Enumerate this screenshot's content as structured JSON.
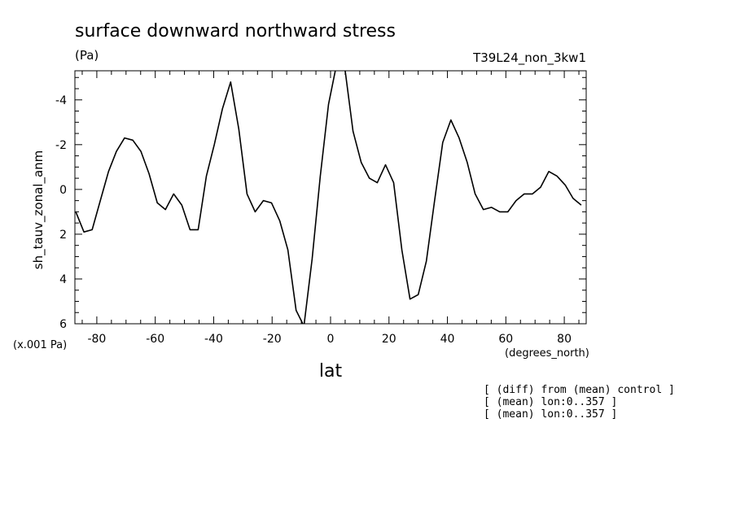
{
  "chart_data": {
    "type": "line",
    "title": "surface downward northward stress",
    "units_label": "(Pa)",
    "run_label": "T39L24_non_3kw1",
    "ylabel": "sh_tauv_zonal_anm",
    "xlabel": "lat",
    "x_units_label": "(degrees_north)",
    "y_scale_label": "(x.001 Pa)",
    "xlim": [
      -87.5,
      87.5
    ],
    "ylim": [
      6,
      -5.3
    ],
    "y_inverted": true,
    "xticks": [
      -80,
      -60,
      -40,
      -20,
      0,
      20,
      40,
      60,
      80
    ],
    "xtick_labels": [
      "-80",
      "-60",
      "-40",
      "-20",
      "0",
      "20",
      "40",
      "60",
      "80"
    ],
    "yticks": [
      -4,
      -2,
      0,
      2,
      4,
      6
    ],
    "ytick_labels": [
      "-4",
      "-2",
      "0",
      "2",
      "4",
      "6"
    ],
    "grid": false,
    "series": [
      {
        "x": [
          -87.2,
          -84.4,
          -81.6,
          -78.8,
          -76.0,
          -73.3,
          -70.5,
          -67.7,
          -64.9,
          -62.1,
          -59.3,
          -56.5,
          -53.7,
          -50.9,
          -48.1,
          -45.3,
          -42.5,
          -39.8,
          -37.0,
          -34.2,
          -31.4,
          -28.6,
          -25.8,
          -23.0,
          -20.2,
          -17.4,
          -14.6,
          -11.8,
          -9.1,
          -6.3,
          -3.5,
          -0.7,
          2.1,
          4.9,
          7.7,
          10.5,
          13.3,
          16.0,
          18.8,
          21.6,
          24.4,
          27.2,
          30.0,
          32.8,
          35.6,
          38.4,
          41.2,
          44.0,
          46.8,
          49.5,
          52.3,
          55.1,
          57.9,
          60.7,
          63.5,
          66.3,
          69.1,
          71.9,
          74.7,
          77.5,
          80.3,
          83.0,
          85.8
        ],
        "values": [
          1.0,
          1.9,
          1.8,
          0.5,
          -0.8,
          -1.7,
          -2.3,
          -2.2,
          -1.7,
          -0.7,
          0.6,
          0.9,
          0.2,
          0.7,
          1.8,
          1.8,
          -0.6,
          -2.0,
          -3.6,
          -4.8,
          -2.7,
          0.2,
          1.0,
          0.5,
          0.6,
          1.4,
          2.7,
          5.4,
          6.1,
          3.1,
          -0.6,
          -3.8,
          -5.6,
          -5.4,
          -2.6,
          -1.2,
          -0.5,
          -0.3,
          -1.1,
          -0.3,
          2.7,
          4.9,
          4.7,
          3.2,
          0.5,
          -2.1,
          -3.1,
          -2.3,
          -1.2,
          0.2,
          0.9,
          0.8,
          1.0,
          1.0,
          0.5,
          0.2,
          0.2,
          -0.1,
          -0.8,
          -0.6,
          -0.2,
          0.4,
          0.7
        ]
      }
    ]
  },
  "notes": [
    "[ (diff) from (mean) control ]",
    "[ (mean) lon:0..357 ]",
    "[ (mean) lon:0..357 ]"
  ]
}
